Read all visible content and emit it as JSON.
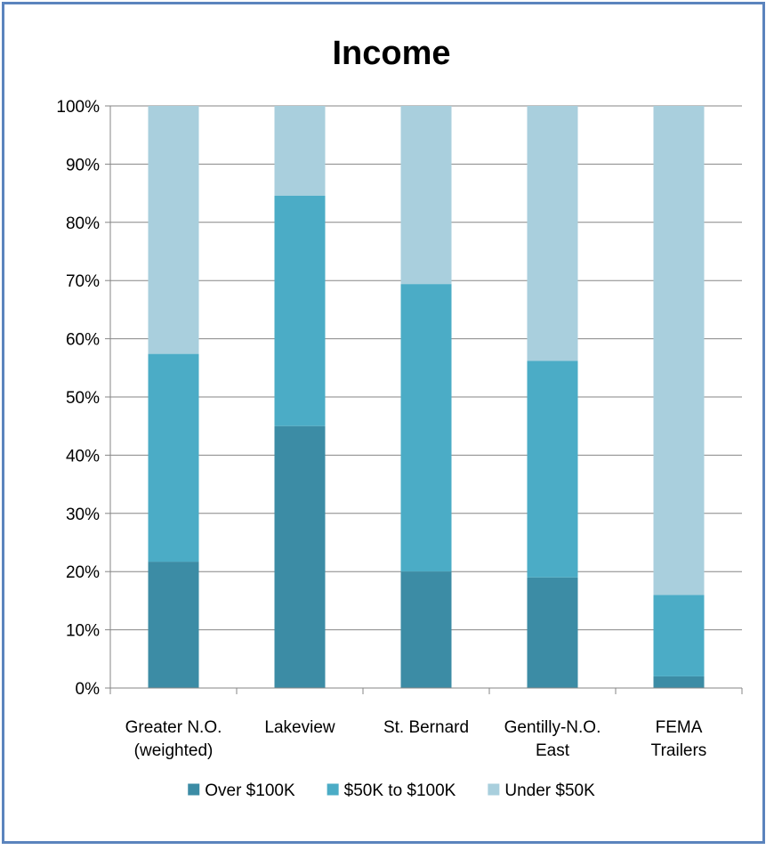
{
  "chart_data": {
    "type": "bar",
    "stacked": true,
    "title": "Income",
    "categories": [
      [
        "Greater N.O.",
        "(weighted)"
      ],
      [
        "Lakeview"
      ],
      [
        "St. Bernard"
      ],
      [
        "Gentilly-N.O.",
        "East"
      ],
      [
        "FEMA",
        "Trailers"
      ]
    ],
    "series": [
      {
        "name": "Over $100K",
        "color": "#3c8ca5",
        "values": [
          21.7,
          45.0,
          20.0,
          19.0,
          2.0
        ]
      },
      {
        "name": "$50K to $100K",
        "color": "#4bacc6",
        "values": [
          35.7,
          39.6,
          49.4,
          37.2,
          14.0
        ]
      },
      {
        "name": "Under $50K",
        "color": "#a9cfdd",
        "values": [
          42.6,
          15.4,
          30.6,
          43.8,
          84.0
        ]
      }
    ],
    "ylim": [
      0,
      100
    ],
    "yticks": [
      "0%",
      "10%",
      "20%",
      "30%",
      "40%",
      "50%",
      "60%",
      "70%",
      "80%",
      "90%",
      "100%"
    ],
    "grid": true,
    "legend_position": "bottom"
  }
}
